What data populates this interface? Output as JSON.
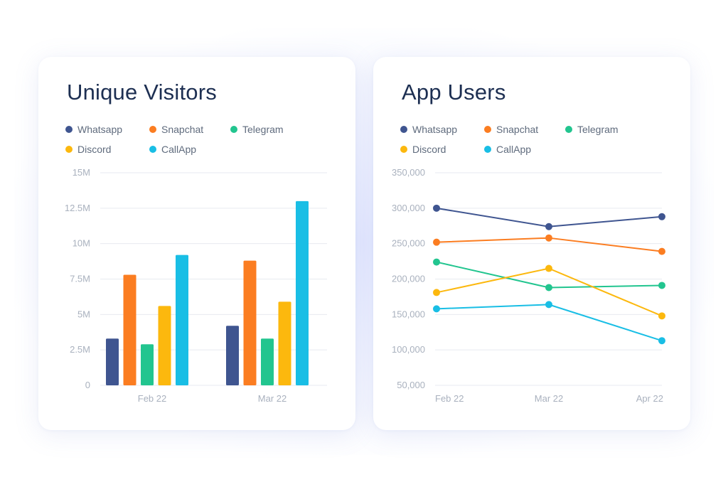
{
  "chart_data": [
    {
      "type": "bar",
      "title": "Unique Visitors",
      "categories": [
        "Feb 22",
        "Mar 22"
      ],
      "ylim": [
        0,
        15
      ],
      "y_ticks": [
        "0",
        "2.5M",
        "5M",
        "7.5M",
        "10M",
        "12.5M",
        "15M"
      ],
      "y_tick_values": [
        0,
        2.5,
        5,
        7.5,
        10,
        12.5,
        15
      ],
      "grid": true,
      "legend_position": "top",
      "series": [
        {
          "name": "Whatsapp",
          "color": "#3f5590",
          "values": [
            3.3,
            4.2
          ]
        },
        {
          "name": "Snapchat",
          "color": "#fb7d21",
          "values": [
            7.8,
            8.8
          ]
        },
        {
          "name": "Telegram",
          "color": "#22c58f",
          "values": [
            2.9,
            3.3
          ]
        },
        {
          "name": "Discord",
          "color": "#fcb80e",
          "values": [
            5.6,
            5.9
          ]
        },
        {
          "name": "CallApp",
          "color": "#19bee5",
          "values": [
            9.2,
            13.0
          ]
        }
      ]
    },
    {
      "type": "line",
      "title": "App Users",
      "categories": [
        "Feb 22",
        "Mar 22",
        "Apr 22"
      ],
      "ylim": [
        50000,
        350000
      ],
      "y_ticks": [
        "50,000",
        "100,000",
        "150,000",
        "200,000",
        "250,000",
        "300,000",
        "350,000"
      ],
      "y_tick_values": [
        50000,
        100000,
        150000,
        200000,
        250000,
        300000,
        350000
      ],
      "grid": true,
      "legend_position": "top",
      "series": [
        {
          "name": "Whatsapp",
          "color": "#3f5590",
          "values": [
            300000,
            274000,
            288000
          ]
        },
        {
          "name": "Snapchat",
          "color": "#fb7d21",
          "values": [
            252000,
            258000,
            239000
          ]
        },
        {
          "name": "Telegram",
          "color": "#22c58f",
          "values": [
            224000,
            188000,
            191000
          ]
        },
        {
          "name": "Discord",
          "color": "#fcb80e",
          "values": [
            181000,
            215000,
            148000
          ]
        },
        {
          "name": "CallApp",
          "color": "#19bee5",
          "values": [
            158000,
            164000,
            113000
          ]
        }
      ]
    }
  ]
}
